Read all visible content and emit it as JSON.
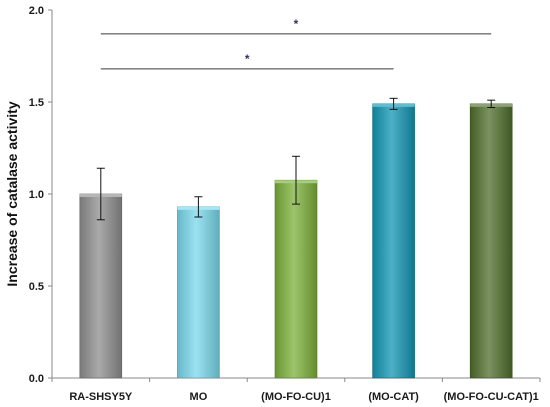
{
  "chart_data": {
    "type": "bar",
    "title": "",
    "xlabel": "",
    "ylabel": "Increase of catalase activity",
    "ylim": [
      0,
      2.0
    ],
    "yticks": [
      "0.0",
      "0.5",
      "1.0",
      "1.5",
      "2.0"
    ],
    "grid": false,
    "categories": [
      "RA-SHSY5Y",
      "MO",
      "(MO-FO-CU)1",
      "(MO-CAT)",
      "(MO-FO-CU-CAT)1"
    ],
    "values": [
      1.0,
      0.93,
      1.075,
      1.49,
      1.49
    ],
    "error": [
      0.14,
      0.055,
      0.13,
      0.03,
      0.02
    ],
    "colors": [
      "#8e8e8e",
      "#79d8ec",
      "#7cb03a",
      "#1296b4",
      "#4f6e2c"
    ],
    "significance": [
      {
        "from": "RA-SHSY5Y",
        "to": "(MO-FO-CU-CAT)1",
        "y": 1.87,
        "label": "*"
      },
      {
        "from": "RA-SHSY5Y",
        "to": "(MO-CAT)",
        "y": 1.68,
        "label": "*"
      }
    ]
  }
}
